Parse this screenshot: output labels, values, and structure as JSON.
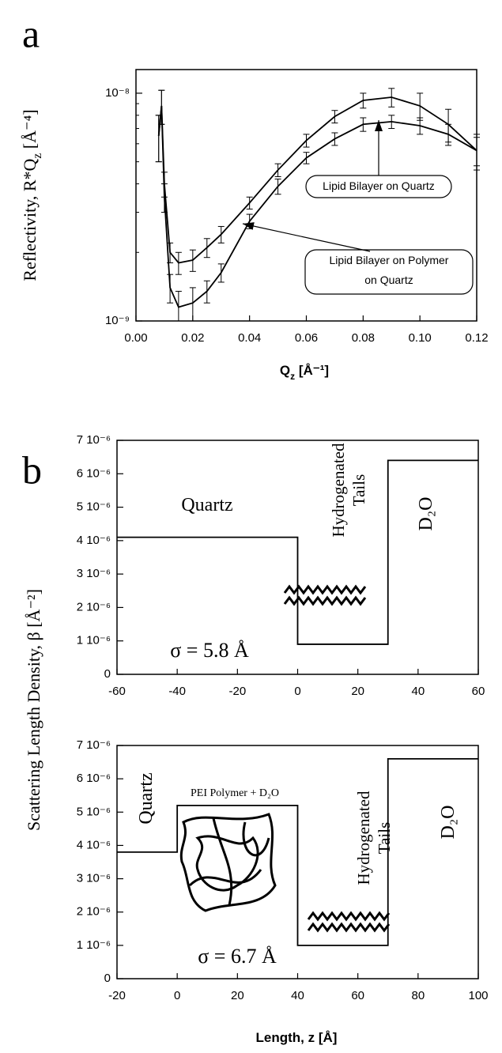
{
  "chart_data": [
    {
      "type": "line",
      "panel_label": "a",
      "xlabel": [
        "Q",
        "z",
        " [Å⁻¹]"
      ],
      "ylabel": [
        "Reflectivity, R*Q",
        "z",
        " [Å⁻⁴]"
      ],
      "log_y": true,
      "color": "#000000",
      "x": [
        0.008,
        0.009,
        0.01,
        0.012,
        0.015,
        0.02,
        0.025,
        0.03,
        0.04,
        0.05,
        0.06,
        0.07,
        0.08,
        0.09,
        0.1,
        0.11,
        0.12
      ],
      "series": [
        {
          "color": "#000000",
          "values": [
            6.5e-09,
            8.8e-09,
            4e-09,
            2e-09,
            1.8e-09,
            1.85e-09,
            2.1e-09,
            2.4e-09,
            3.3e-09,
            4.6e-09,
            6.2e-09,
            7.9e-09,
            9.3e-09,
            9.6e-09,
            8.8e-09,
            7.3e-09,
            5.6e-09
          ],
          "errors": [
            1.5e-09,
            1.5e-09,
            5e-10,
            2e-10,
            2e-10,
            2e-10,
            2e-10,
            2e-10,
            2e-10,
            3e-10,
            4e-10,
            5e-10,
            7e-10,
            9e-10,
            1.2e-09,
            1.2e-09,
            1e-09
          ]
        },
        {
          "color": "#000000",
          "values": [
            6.5e-09,
            8.8e-09,
            3.5e-09,
            1.4e-09,
            1.15e-09,
            1.2e-09,
            1.35e-09,
            1.63e-09,
            2.74e-09,
            3.9e-09,
            5.2e-09,
            6.3e-09,
            7.3e-09,
            7.5e-09,
            7.2e-09,
            6.6e-09,
            5.6e-09
          ],
          "errors": [
            1.5e-09,
            1.5e-09,
            5e-10,
            2e-10,
            2e-10,
            2e-10,
            1.5e-10,
            1.5e-10,
            2e-10,
            3e-10,
            3e-10,
            4e-10,
            5e-10,
            5e-10,
            6e-10,
            7e-10,
            8e-10
          ]
        }
      ],
      "xlim": [
        0,
        0.12
      ],
      "xticks": [
        {
          "value": 0,
          "label": "0.00"
        },
        {
          "value": 0.02,
          "label": "0.02"
        },
        {
          "value": 0.04,
          "label": "0.04"
        },
        {
          "value": 0.06,
          "label": "0.06"
        },
        {
          "value": 0.08,
          "label": "0.08"
        },
        {
          "value": 0.1,
          "label": "0.10"
        },
        {
          "value": 0.12,
          "label": "0.12"
        }
      ],
      "ylim": [
        1e-09,
        1.27e-08
      ],
      "yticks": [
        {
          "value": 1e-09,
          "label": "10⁻⁹"
        },
        {
          "value": 1e-08,
          "label": "10⁻⁸"
        }
      ],
      "annotations": [
        "Lipid Bilayer on Quartz",
        [
          "Lipid Bilayer on Polymer",
          "on Quartz"
        ]
      ]
    },
    {
      "type": "line",
      "panel_label": "b",
      "ylabel": [
        "Scattering Length Density, β [Å⁻²]"
      ],
      "x": [
        -60,
        0,
        0,
        30,
        30,
        60
      ],
      "series": [
        {
          "color": "#000000",
          "values": [
            4.1e-06,
            4.1e-06,
            9e-07,
            9e-07,
            6.4e-06,
            6.4e-06
          ]
        }
      ],
      "xlim": [
        -60,
        60
      ],
      "xticks": [
        -60,
        -40,
        -20,
        0,
        20,
        40,
        60
      ],
      "ylim": [
        0,
        7e-06
      ],
      "yticks": [
        0,
        {
          "value": 1e-06,
          "label": "1 10⁻⁶"
        },
        {
          "value": 2e-06,
          "label": "2 10⁻⁶"
        },
        {
          "value": 3e-06,
          "label": "3 10⁻⁶"
        },
        {
          "value": 4e-06,
          "label": "4 10⁻⁶"
        },
        {
          "value": 5e-06,
          "label": "5 10⁻⁶"
        },
        {
          "value": 6e-06,
          "label": "6 10⁻⁶"
        },
        {
          "value": 7e-06,
          "label": "7 10⁻⁶"
        }
      ],
      "annotations": [
        "Quartz",
        [
          "Hydrogenated",
          "Tails"
        ],
        "D₂O",
        "σ = 5.8 Å"
      ]
    },
    {
      "type": "line",
      "xlabel": [
        "Length, z [Å]"
      ],
      "x": [
        -20,
        0,
        0,
        40,
        40,
        70,
        70,
        100
      ],
      "series": [
        {
          "color": "#000000",
          "values": [
            3.8e-06,
            3.8e-06,
            5.2e-06,
            5.2e-06,
            1e-06,
            1e-06,
            6.6e-06,
            6.6e-06
          ]
        }
      ],
      "xlim": [
        -20,
        100
      ],
      "xticks": [
        -20,
        0,
        20,
        40,
        60,
        80,
        100
      ],
      "ylim": [
        0,
        7e-06
      ],
      "yticks": [
        0,
        {
          "value": 1e-06,
          "label": "1 10⁻⁶"
        },
        {
          "value": 2e-06,
          "label": "2 10⁻⁶"
        },
        {
          "value": 3e-06,
          "label": "3 10⁻⁶"
        },
        {
          "value": 4e-06,
          "label": "4 10⁻⁶"
        },
        {
          "value": 5e-06,
          "label": "5 10⁻⁶"
        },
        {
          "value": 6e-06,
          "label": "6 10⁻⁶"
        },
        {
          "value": 7e-06,
          "label": "7 10⁻⁶"
        }
      ],
      "annotations": [
        "Quartz",
        "PEI Polymer + D₂O",
        [
          "Hydrogenated",
          "Tails"
        ],
        "D₂O",
        "σ = 6.7 Å"
      ]
    }
  ]
}
